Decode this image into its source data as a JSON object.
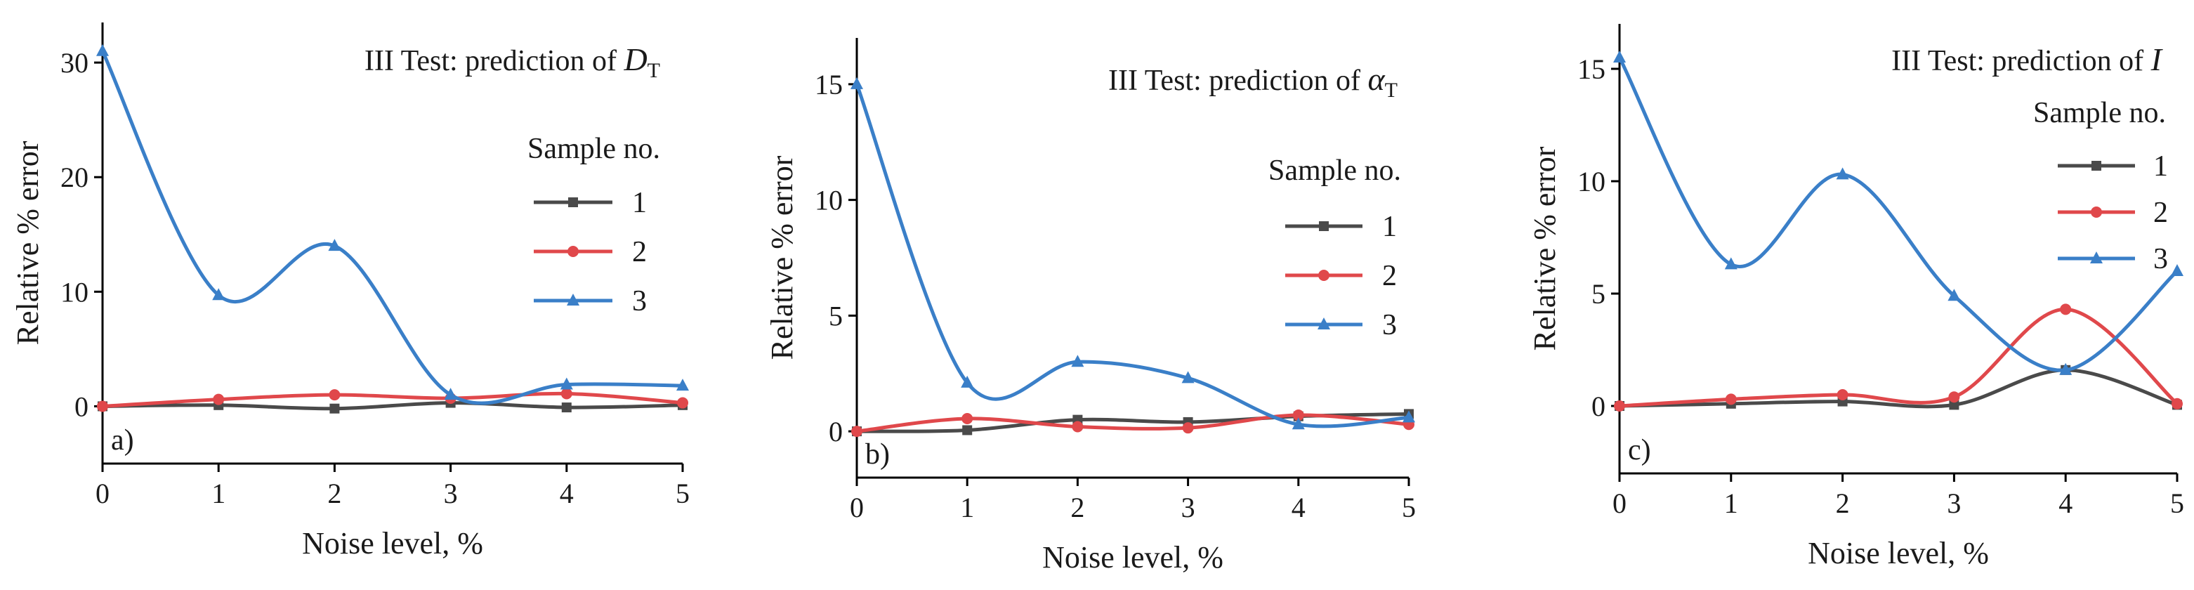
{
  "colors": {
    "1": "#4a4a4a",
    "2": "#e0484b",
    "3": "#3a7fc8"
  },
  "chart_data": [
    {
      "type": "line",
      "panel_label": "a)",
      "title": "III Test: prediction of ",
      "title_symbol": "D",
      "title_subscript": "T",
      "title_italic_symbol": true,
      "xlabel": "Noise level, %",
      "ylabel": "Relative % error",
      "xlim": [
        0,
        5
      ],
      "ylim": [
        -5,
        33.5
      ],
      "xticks": [
        0,
        1,
        2,
        3,
        4,
        5
      ],
      "yticks": [
        0,
        10,
        20,
        30
      ],
      "legend_title": "Sample no.",
      "legend_position": "right",
      "smooth": true,
      "series": [
        {
          "name": "1",
          "marker": "square",
          "x": [
            0,
            1,
            2,
            3,
            4,
            5
          ],
          "y": [
            0,
            0.1,
            -0.2,
            0.3,
            -0.1,
            0.1
          ]
        },
        {
          "name": "2",
          "marker": "circle",
          "x": [
            0,
            1,
            2,
            3,
            4,
            5
          ],
          "y": [
            0,
            0.6,
            1.0,
            0.7,
            1.1,
            0.3
          ]
        },
        {
          "name": "3",
          "marker": "triangle",
          "x": [
            0,
            1,
            2,
            3,
            4,
            5
          ],
          "y": [
            31,
            9.7,
            14.0,
            1.0,
            1.9,
            1.8
          ]
        }
      ]
    },
    {
      "type": "line",
      "panel_label": "b)",
      "title": "III Test: prediction of ",
      "title_symbol": "α",
      "title_subscript": "T",
      "title_italic_symbol": true,
      "xlabel": "Noise level, %",
      "ylabel": "Relative % error",
      "xlim": [
        0,
        5
      ],
      "ylim": [
        -2,
        17
      ],
      "xticks": [
        0,
        1,
        2,
        3,
        4,
        5
      ],
      "yticks": [
        0,
        5,
        10,
        15
      ],
      "legend_title": "Sample no.",
      "legend_position": "right",
      "smooth": true,
      "series": [
        {
          "name": "1",
          "marker": "square",
          "x": [
            0,
            1,
            2,
            3,
            4,
            5
          ],
          "y": [
            0,
            0.05,
            0.5,
            0.4,
            0.65,
            0.75
          ]
        },
        {
          "name": "2",
          "marker": "circle",
          "x": [
            0,
            1,
            2,
            3,
            4,
            5
          ],
          "y": [
            0,
            0.55,
            0.2,
            0.15,
            0.7,
            0.3
          ]
        },
        {
          "name": "3",
          "marker": "triangle",
          "x": [
            0,
            1,
            2,
            3,
            4,
            5
          ],
          "y": [
            15.0,
            2.1,
            3.0,
            2.3,
            0.3,
            0.6
          ]
        }
      ]
    },
    {
      "type": "line",
      "panel_label": "c)",
      "title": "III Test: prediction of ",
      "title_symbol": "I",
      "title_subscript": "",
      "title_italic_symbol": true,
      "xlabel": "Noise level, %",
      "ylabel": "Relative % error",
      "xlim": [
        0,
        5
      ],
      "ylim": [
        -3,
        17
      ],
      "xticks": [
        0,
        1,
        2,
        3,
        4,
        5
      ],
      "yticks": [
        0,
        5,
        10,
        15
      ],
      "legend_title": "Sample no.",
      "legend_position": "right",
      "smooth": true,
      "series": [
        {
          "name": "1",
          "marker": "square",
          "x": [
            0,
            1,
            2,
            3,
            4,
            5
          ],
          "y": [
            0,
            0.1,
            0.2,
            0.05,
            1.6,
            0.05
          ]
        },
        {
          "name": "2",
          "marker": "circle",
          "x": [
            0,
            1,
            2,
            3,
            4,
            5
          ],
          "y": [
            0,
            0.3,
            0.5,
            0.4,
            4.3,
            0.1
          ]
        },
        {
          "name": "3",
          "marker": "triangle",
          "x": [
            0,
            1,
            2,
            3,
            4,
            5
          ],
          "y": [
            15.5,
            6.3,
            10.3,
            4.9,
            1.6,
            6.0
          ]
        }
      ]
    }
  ]
}
